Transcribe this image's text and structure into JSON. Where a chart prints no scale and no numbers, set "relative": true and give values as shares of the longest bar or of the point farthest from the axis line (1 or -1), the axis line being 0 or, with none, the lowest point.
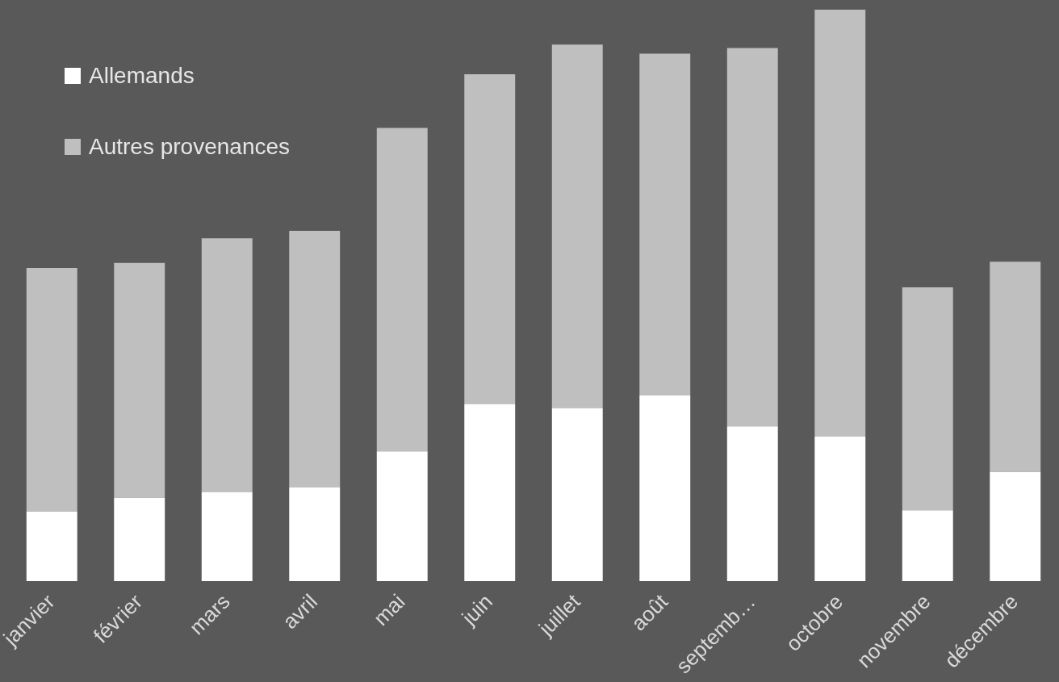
{
  "chart_data": {
    "type": "bar",
    "stacked": true,
    "relative": true,
    "legend": "top left",
    "grid": false,
    "categories": [
      "janvier",
      "février",
      "mars",
      "avril",
      "mai",
      "juin",
      "juillet",
      "août",
      "septemb…",
      "octobre",
      "novembre",
      "décembre"
    ],
    "series": [
      {
        "name": "Allemands",
        "color": "#ffffff",
        "values": [
          0.122,
          0.146,
          0.156,
          0.164,
          0.227,
          0.31,
          0.303,
          0.325,
          0.271,
          0.253,
          0.124,
          0.191
        ]
      },
      {
        "name": "Autres provenances",
        "color": "#bfbfbf",
        "values": [
          0.426,
          0.411,
          0.444,
          0.449,
          0.566,
          0.577,
          0.636,
          0.598,
          0.662,
          0.747,
          0.39,
          0.368
        ]
      }
    ]
  }
}
